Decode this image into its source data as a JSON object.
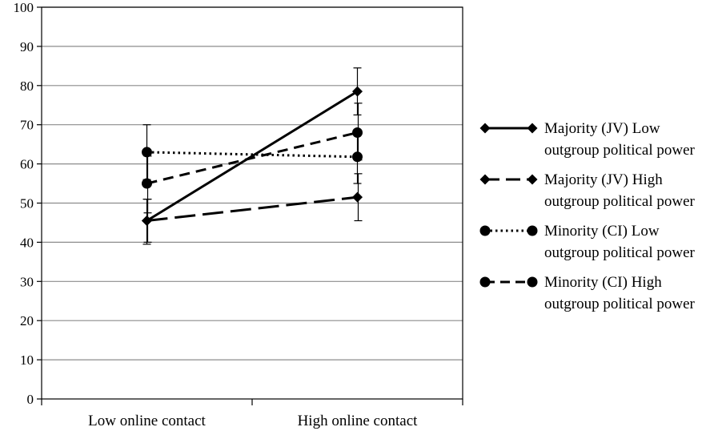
{
  "chart_data": {
    "type": "line",
    "categories": [
      "Low online contact",
      "High online contact"
    ],
    "ylim": [
      0,
      100
    ],
    "yticks": [
      0,
      10,
      20,
      30,
      40,
      50,
      60,
      70,
      80,
      90,
      100
    ],
    "grid": true,
    "legend_position": "right",
    "series": [
      {
        "name_lines": [
          "Majority (JV) Low",
          "outgroup political power"
        ],
        "marker": "diamond",
        "line_style": "solid",
        "values": [
          45.5,
          78.5
        ],
        "error": [
          [
            39.5,
            51.0
          ],
          [
            72.5,
            84.5
          ]
        ]
      },
      {
        "name_lines": [
          "Majority (JV) High",
          "outgroup political power"
        ],
        "marker": "diamond",
        "line_style": "long-dash",
        "values": [
          45.5,
          51.5
        ],
        "error": [
          [
            40.0,
            51.0
          ],
          [
            45.5,
            57.5
          ]
        ]
      },
      {
        "name_lines": [
          "Minority (CI) Low",
          "outgroup political power"
        ],
        "marker": "circle",
        "line_style": "dotted",
        "values": [
          63.0,
          61.8
        ],
        "error": [
          [
            56.0,
            70.0
          ],
          [
            55.0,
            68.5
          ]
        ]
      },
      {
        "name_lines": [
          "Minority (CI) High",
          "outgroup political power"
        ],
        "marker": "circle",
        "line_style": "dashed",
        "values": [
          55.0,
          68.0
        ],
        "error": [
          [
            47.5,
            62.0
          ],
          [
            61.0,
            75.5
          ]
        ]
      }
    ]
  }
}
